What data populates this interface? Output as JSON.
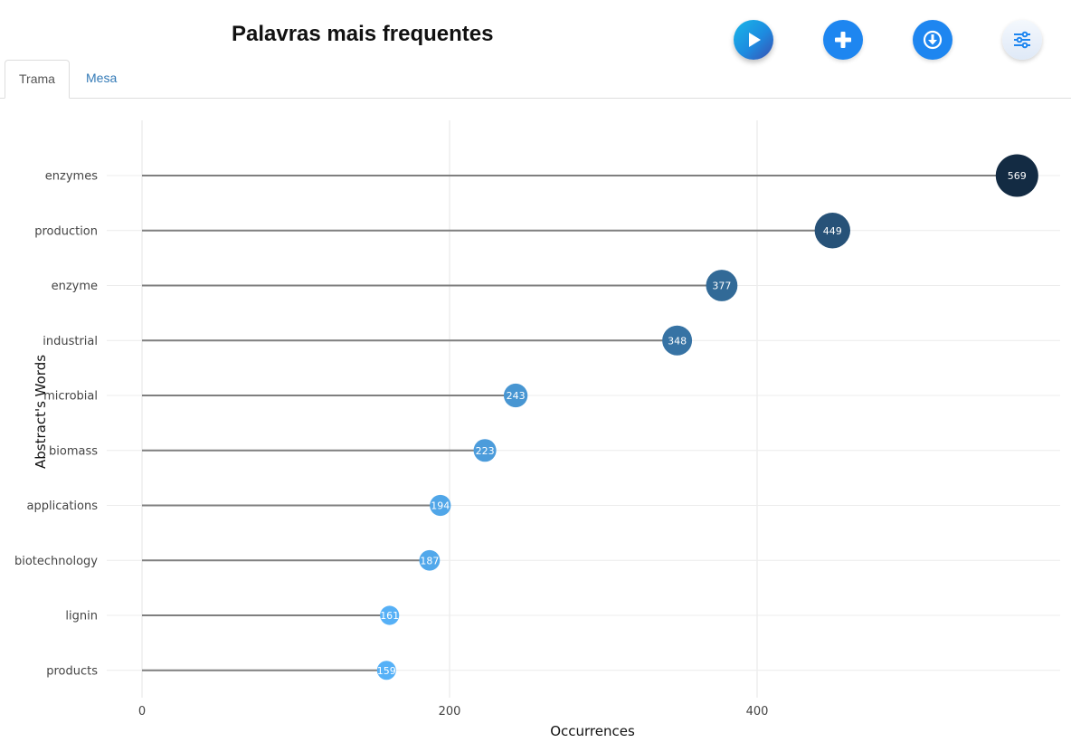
{
  "header": {
    "title": "Palavras mais frequentes"
  },
  "toolbar": {
    "play_icon": "play-icon",
    "add_icon": "plus-icon",
    "download_icon": "download-icon",
    "settings_icon": "sliders-icon"
  },
  "tabs": [
    {
      "label": "Trama",
      "active": true
    },
    {
      "label": "Mesa",
      "active": false
    }
  ],
  "colors": {
    "line": "#7f7f7f",
    "dot_low": "#56b1f7",
    "dot_high": "#132b43",
    "tab_link": "#337ab7",
    "button_blue": "#1e86f0"
  },
  "chart_data": {
    "type": "lollipop",
    "xlabel": "Occurrences",
    "ylabel": "Abstract's Words",
    "xlim": [
      -60,
      598
    ],
    "xticks": [
      0,
      200,
      400
    ],
    "grid": true,
    "categories": [
      "enzymes",
      "production",
      "enzyme",
      "industrial",
      "microbial",
      "biomass",
      "applications",
      "biotechnology",
      "lignin",
      "products"
    ],
    "values": [
      569,
      449,
      377,
      348,
      243,
      223,
      194,
      187,
      161,
      159
    ]
  }
}
